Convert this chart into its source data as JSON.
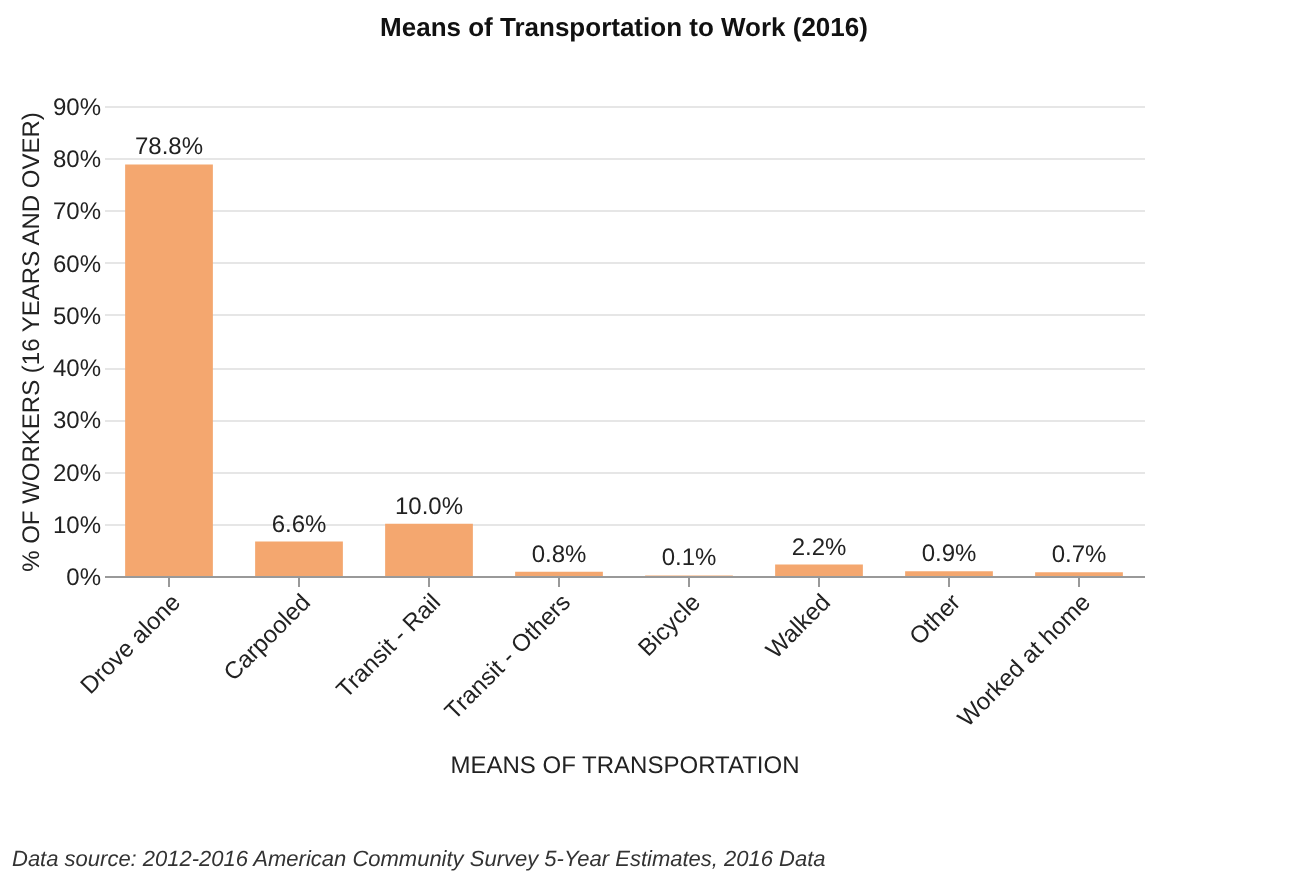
{
  "chart_data": {
    "type": "bar",
    "title": "Means of Transportation to Work (2016)",
    "xlabel": "MEANS OF TRANSPORTATION",
    "ylabel": "% OF WORKERS (16 YEARS AND OVER)",
    "categories": [
      "Drove alone",
      "Carpooled",
      "Transit - Rail",
      "Transit - Others",
      "Bicycle",
      "Walked",
      "Other",
      "Worked at home"
    ],
    "values": [
      78.8,
      6.6,
      10.0,
      0.8,
      0.1,
      2.2,
      0.9,
      0.7
    ],
    "value_labels": [
      "78.8%",
      "6.6%",
      "10.0%",
      "0.8%",
      "0.1%",
      "2.2%",
      "0.9%",
      "0.7%"
    ],
    "color": "#f4a76f",
    "ylim": [
      0,
      90
    ],
    "yticks": [
      {
        "value": 0,
        "label": "0%"
      },
      {
        "value": 10,
        "label": "10%"
      },
      {
        "value": 20,
        "label": "20%"
      },
      {
        "value": 30,
        "label": "30%"
      },
      {
        "value": 40,
        "label": "40%"
      },
      {
        "value": 50,
        "label": "50%"
      },
      {
        "value": 60,
        "label": "60%"
      },
      {
        "value": 70,
        "label": "70%"
      },
      {
        "value": 80,
        "label": "80%"
      },
      {
        "value": 90,
        "label": "90%"
      }
    ],
    "grid": "y",
    "annotations": [
      "Data source: 2012-2016 American Community Survey 5-Year Estimates, 2016 Data"
    ]
  }
}
